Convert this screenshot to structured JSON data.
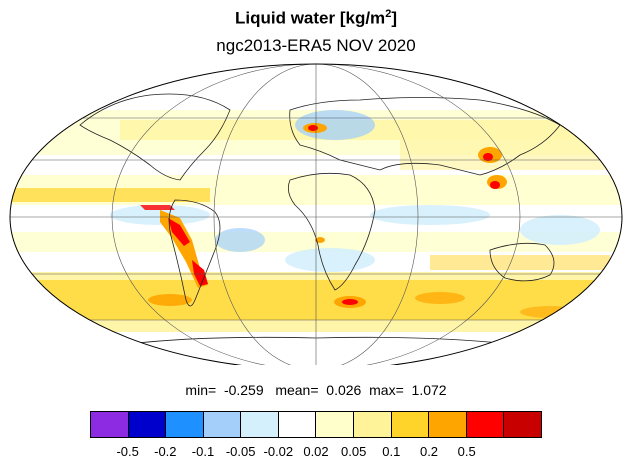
{
  "title": {
    "text": "Liquid water  [kg/m",
    "superscript": "2",
    "suffix": "]"
  },
  "subtitle": "ngc2013-ERA5 NOV 2020",
  "stats": {
    "min_label": "min=",
    "min_value": "-0.259",
    "mean_label": "mean=",
    "mean_value": "0.026",
    "max_label": "max=",
    "max_value": "1.072"
  },
  "colorbar": {
    "colors": [
      "#8c2be2",
      "#0000cd",
      "#1e90ff",
      "#a3cffa",
      "#d4f0fc",
      "#ffffff",
      "#ffffcc",
      "#fff399",
      "#ffd42a",
      "#ffa500",
      "#ff0000",
      "#c80000"
    ],
    "labels": [
      "-0.5",
      "-0.2",
      "-0.1",
      "-0.05",
      "-0.02",
      "0.02",
      "0.05",
      "0.1",
      "0.2",
      "0.5"
    ]
  },
  "map": {
    "projection": "Mollweide",
    "graticule": true,
    "coastlines": true
  }
}
